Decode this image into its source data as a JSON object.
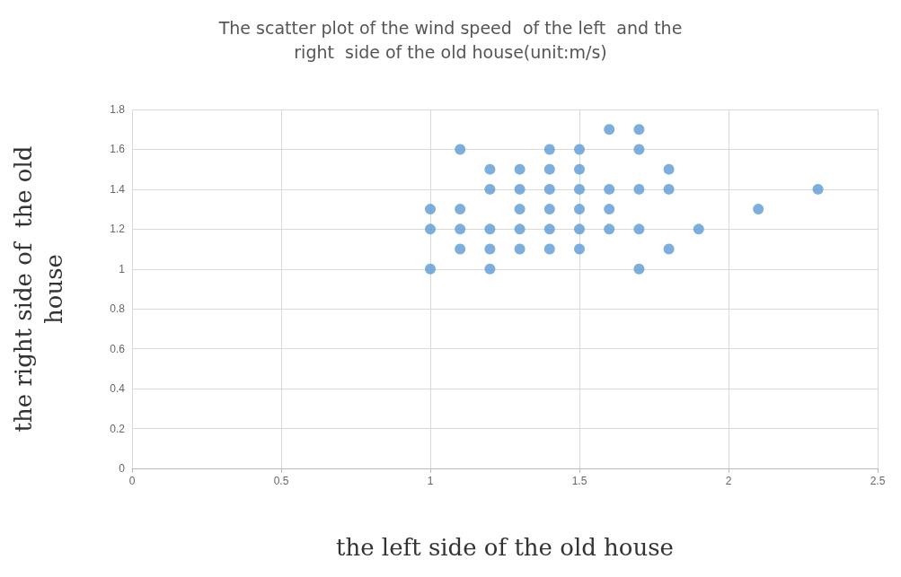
{
  "chart_data": {
    "type": "scatter",
    "title": "The scatter plot of the wind speed  of the left  and the\nright  side of the old house(unit:m/s)",
    "xlabel": "the left side of the old house",
    "ylabel": "the right side of  the old\nhouse",
    "x": [
      1,
      1,
      1,
      1.1,
      1.1,
      1.1,
      1.1,
      1.2,
      1.2,
      1.2,
      1.2,
      1.2,
      1.3,
      1.3,
      1.3,
      1.3,
      1.3,
      1.4,
      1.4,
      1.4,
      1.4,
      1.4,
      1.4,
      1.5,
      1.5,
      1.5,
      1.5,
      1.5,
      1.5,
      1.6,
      1.6,
      1.6,
      1.6,
      1.7,
      1.7,
      1.7,
      1.7,
      1.7,
      1.8,
      1.8,
      1.8,
      1.9,
      2.1,
      2.3
    ],
    "values": [
      1.3,
      1.2,
      1,
      1.6,
      1.3,
      1.2,
      1.1,
      1.5,
      1.4,
      1.2,
      1.1,
      1,
      1.5,
      1.4,
      1.3,
      1.2,
      1.1,
      1.6,
      1.5,
      1.4,
      1.3,
      1.2,
      1.1,
      1.6,
      1.5,
      1.4,
      1.3,
      1.2,
      1.1,
      1.7,
      1.4,
      1.3,
      1.2,
      1.7,
      1.6,
      1.4,
      1.2,
      1,
      1.5,
      1.4,
      1.1,
      1.2,
      1.3,
      1.4
    ],
    "color": "#5b9bd5",
    "marker": "circle",
    "xlim": [
      0,
      2.5
    ],
    "xticks": [
      0,
      0.5,
      1,
      1.5,
      2,
      2.5
    ],
    "ylim": [
      0,
      1.8
    ],
    "yticks": [
      0,
      0.2,
      0.4,
      0.6,
      0.8,
      1,
      1.2,
      1.4,
      1.6,
      1.8
    ],
    "grid": true
  }
}
